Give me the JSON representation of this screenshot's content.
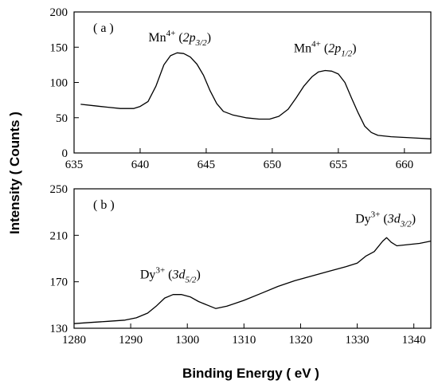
{
  "ylabel": "Intensity ( Counts )",
  "xlabel": "Binding Energy ( eV )",
  "chart_data": [
    {
      "type": "line",
      "panel_label": "( a )",
      "xlim": [
        635,
        662
      ],
      "ylim": [
        0,
        200
      ],
      "x_ticks": [
        635,
        640,
        645,
        650,
        655,
        660
      ],
      "y_ticks": [
        0,
        50,
        100,
        150,
        200
      ],
      "annotations": [
        {
          "base": "Mn",
          "sup": "4+",
          "open": " (",
          "orb": "2p",
          "sub": "3/2",
          "close": ")",
          "x": 643,
          "y": 158
        },
        {
          "base": "Mn",
          "sup": "4+",
          "open": " (",
          "orb": "2p",
          "sub": "1/2",
          "close": ")",
          "x": 654,
          "y": 143
        }
      ],
      "series": [
        {
          "x": [
            635.5,
            636.5,
            637.5,
            638.5,
            639.5,
            640.0,
            640.6,
            641.2,
            641.8,
            642.3,
            642.8,
            643.3,
            643.8,
            644.3,
            644.8,
            645.3,
            645.8,
            646.3,
            647.0,
            648.0,
            649.0,
            649.8,
            650.5,
            651.2,
            651.8,
            652.4,
            653.0,
            653.5,
            654.0,
            654.5,
            655.0,
            655.5,
            656.0,
            656.5,
            657.0,
            657.5,
            658.0,
            659.0,
            660.0,
            661.0,
            662.0
          ],
          "y": [
            69,
            67,
            65,
            63,
            63,
            66,
            73,
            95,
            125,
            138,
            142,
            141,
            136,
            126,
            110,
            88,
            70,
            59,
            54,
            50,
            48,
            48,
            52,
            62,
            78,
            95,
            108,
            115,
            117,
            116,
            112,
            100,
            78,
            57,
            38,
            29,
            25,
            23,
            22,
            21,
            20
          ]
        }
      ]
    },
    {
      "type": "line",
      "panel_label": "( b )",
      "xlim": [
        1280,
        1343
      ],
      "ylim": [
        130,
        250
      ],
      "x_ticks": [
        1280,
        1290,
        1300,
        1310,
        1320,
        1330,
        1340
      ],
      "y_ticks": [
        130,
        170,
        210,
        250
      ],
      "annotations": [
        {
          "base": "Dy",
          "sup": "3+",
          "open": " (",
          "orb": "3d",
          "sub": "5/2",
          "close": ")",
          "x": 1297,
          "y": 173
        },
        {
          "base": "Dy",
          "sup": "3+",
          "open": " (",
          "orb": "3d",
          "sub": "3/2",
          "close": ")",
          "x": 1335,
          "y": 221
        }
      ],
      "series": [
        {
          "x": [
            1280,
            1283,
            1286,
            1289,
            1291,
            1293,
            1294.5,
            1296,
            1297.5,
            1299,
            1300.5,
            1302,
            1304,
            1305,
            1307,
            1310,
            1313,
            1316,
            1319,
            1322,
            1325,
            1328,
            1330,
            1331.5,
            1333,
            1334.5,
            1335.2,
            1336,
            1337,
            1339,
            1341,
            1343
          ],
          "y": [
            134,
            135,
            136,
            137,
            139,
            143,
            149,
            156,
            159,
            159,
            157,
            153,
            149,
            147,
            149,
            154,
            160,
            166,
            171,
            175,
            179,
            183,
            186,
            192,
            196,
            205,
            208,
            204,
            201,
            202,
            203,
            205
          ]
        }
      ]
    }
  ]
}
